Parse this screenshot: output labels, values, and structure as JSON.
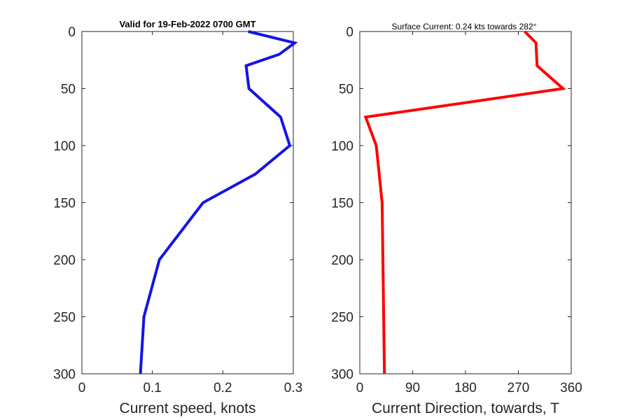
{
  "colors": {
    "speed_line": "#1414e6",
    "direction_line": "#ff0000",
    "axes": "#262626",
    "background": "#ffffff"
  },
  "chart_data": [
    {
      "type": "line",
      "title": "Valid for 19-Feb-2022 0700 GMT",
      "xlabel": "Current speed, knots",
      "ylabel": "",
      "xlim": [
        0,
        0.3
      ],
      "ylim": [
        300,
        0
      ],
      "y_reversed": true,
      "grid": false,
      "xticks": [
        "0",
        "0.1",
        "0.2",
        "0.3"
      ],
      "yticks": [
        "0",
        "50",
        "100",
        "150",
        "200",
        "250",
        "300"
      ],
      "series": [
        {
          "x": [
            0.236,
            0.302,
            0.28,
            0.233,
            0.237,
            0.282,
            0.295,
            0.246,
            0.172,
            0.11,
            0.088,
            0.083
          ],
          "y": [
            0,
            10,
            20,
            30,
            50,
            75,
            100,
            125,
            150,
            200,
            250,
            300
          ]
        }
      ]
    },
    {
      "type": "line",
      "title": "Surface Current: 0.24 kts towards 282°",
      "xlabel": "Current Direction, towards, T",
      "ylabel": "",
      "xlim": [
        0,
        360
      ],
      "ylim": [
        300,
        0
      ],
      "y_reversed": true,
      "grid": false,
      "xticks": [
        "0",
        "90",
        "180",
        "270",
        "360"
      ],
      "yticks": [
        "0",
        "50",
        "100",
        "150",
        "200",
        "250",
        "300"
      ],
      "series": [
        {
          "x": [
            281,
            300,
            302,
            346,
            10,
            28,
            38,
            42
          ],
          "y": [
            0,
            10,
            30,
            50,
            75,
            100,
            150,
            300
          ]
        }
      ]
    }
  ]
}
